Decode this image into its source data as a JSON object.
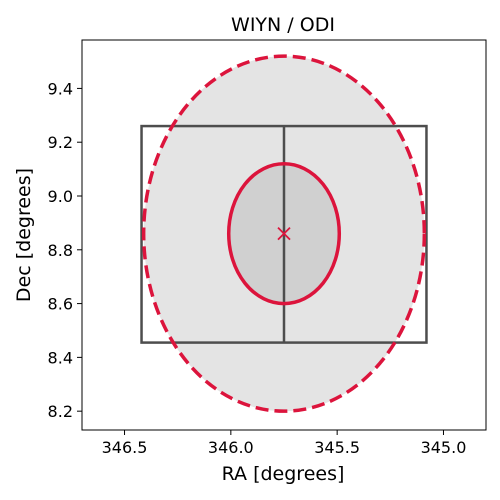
{
  "chart_data": {
    "type": "scatter",
    "title": "WIYN / ODI",
    "xlabel": "RA [degrees]",
    "ylabel": "Dec [degrees]",
    "xlim": [
      346.7,
      344.8
    ],
    "ylim": [
      8.13,
      9.58
    ],
    "x_inverted": true,
    "xticks": [
      346.5,
      346.0,
      345.5,
      345.0
    ],
    "xtick_labels": [
      "346.5",
      "346.0",
      "345.5",
      "345.0"
    ],
    "yticks": [
      8.2,
      8.4,
      8.6,
      8.8,
      9.0,
      9.2,
      9.4
    ],
    "ytick_labels": [
      "8.2",
      "8.4",
      "8.6",
      "8.8",
      "9.0",
      "9.2",
      "9.4"
    ],
    "grid": false,
    "center": {
      "ra": 345.75,
      "dec": 8.86,
      "marker": "x",
      "color": "#dc143c"
    },
    "inner_ellipse": {
      "ra": 345.75,
      "dec": 8.86,
      "semi_axis_ra": 0.26,
      "semi_axis_dec": 0.26,
      "fill": "#d0d0d0",
      "edge": "#dc143c",
      "linestyle": "solid"
    },
    "outer_ellipse": {
      "ra": 345.75,
      "dec": 8.86,
      "semi_axis_ra": 0.66,
      "semi_axis_dec": 0.66,
      "fill": "#e4e4e4",
      "edge": "#dc143c",
      "linestyle": "dashed"
    },
    "footprint": {
      "ra_min": 345.08,
      "ra_max": 346.42,
      "dec_min": 8.455,
      "dec_max": 9.26,
      "divider_ra": 345.75,
      "edge": "#4d4d4d"
    }
  }
}
